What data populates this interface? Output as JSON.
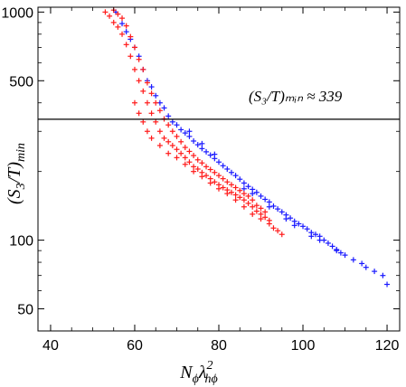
{
  "chart_data": {
    "type": "scatter",
    "xlabel_parts": {
      "base": "N",
      "sub1": "ϕ",
      "mid": "λ",
      "sup": "2",
      "sub2": "hϕ"
    },
    "ylabel_parts": {
      "open": "(S",
      "sub1": "3",
      "close": "/T)",
      "sub2": "min"
    },
    "xlim": [
      37,
      123
    ],
    "ylim": [
      40,
      1050
    ],
    "yscale": "log",
    "x_ticks": [
      40,
      60,
      80,
      100,
      120
    ],
    "x_tick_labels": [
      "40",
      "60",
      "80",
      "100",
      "120"
    ],
    "y_ticks": [
      50,
      100,
      500,
      1000
    ],
    "y_tick_labels": [
      "50",
      "100",
      "500",
      "1000"
    ],
    "annotation": {
      "text": "(S₃/T)ₘᵢₙ ≈ 339",
      "value": 339
    },
    "reference_line_y": 339,
    "grid": false,
    "series": [
      {
        "color": "#1a1aff",
        "marker": "+",
        "points": [
          [
            55.5,
            1000
          ],
          [
            57,
            890
          ],
          [
            58,
            820
          ],
          [
            59,
            760
          ],
          [
            60,
            700
          ],
          [
            61,
            640
          ],
          [
            62,
            560
          ],
          [
            63,
            500
          ],
          [
            64,
            470
          ],
          [
            65,
            430
          ],
          [
            66,
            400
          ],
          [
            67,
            380
          ],
          [
            68,
            350
          ],
          [
            69,
            330
          ],
          [
            70,
            320
          ],
          [
            71,
            305
          ],
          [
            72,
            295
          ],
          [
            73,
            285
          ],
          [
            74,
            272
          ],
          [
            75,
            262
          ],
          [
            76,
            252
          ],
          [
            77,
            244
          ],
          [
            78,
            236
          ],
          [
            79,
            228
          ],
          [
            80,
            220
          ],
          [
            81,
            212
          ],
          [
            82,
            205
          ],
          [
            83,
            198
          ],
          [
            84,
            192
          ],
          [
            85,
            185
          ],
          [
            86,
            178
          ],
          [
            87,
            172
          ],
          [
            88,
            167
          ],
          [
            89,
            162
          ],
          [
            90,
            156
          ],
          [
            91,
            151
          ],
          [
            92,
            147
          ],
          [
            93,
            141
          ],
          [
            94,
            137
          ],
          [
            95,
            133
          ],
          [
            96,
            129
          ],
          [
            97,
            125
          ],
          [
            98,
            121
          ],
          [
            99,
            118
          ],
          [
            100,
            115
          ],
          [
            101,
            112
          ],
          [
            102,
            108
          ],
          [
            103,
            106
          ],
          [
            104,
            104
          ],
          [
            105,
            100
          ],
          [
            106,
            97
          ],
          [
            107,
            94
          ],
          [
            108,
            91
          ],
          [
            109,
            88
          ],
          [
            110,
            86
          ],
          [
            112,
            82
          ],
          [
            114,
            79
          ],
          [
            115,
            76
          ],
          [
            117,
            73
          ],
          [
            119,
            70
          ],
          [
            120,
            64
          ],
          [
            86,
            168
          ],
          [
            88,
            160
          ],
          [
            92,
            140
          ],
          [
            96,
            124
          ],
          [
            98,
            116
          ],
          [
            102,
            104
          ],
          [
            104,
            100
          ],
          [
            108,
            90
          ],
          [
            73,
            300
          ],
          [
            76,
            265
          ],
          [
            79,
            238
          ]
        ]
      },
      {
        "color": "#ff1a1a",
        "marker": "+",
        "points": [
          [
            53,
            1000
          ],
          [
            54,
            960
          ],
          [
            55,
            900
          ],
          [
            55,
            1020
          ],
          [
            56,
            860
          ],
          [
            56,
            980
          ],
          [
            57,
            800
          ],
          [
            57,
            940
          ],
          [
            58,
            720
          ],
          [
            58,
            870
          ],
          [
            59,
            640
          ],
          [
            59,
            780
          ],
          [
            60,
            560
          ],
          [
            60,
            700
          ],
          [
            61,
            500
          ],
          [
            61,
            620
          ],
          [
            62,
            450
          ],
          [
            62,
            560
          ],
          [
            63,
            400
          ],
          [
            63,
            490
          ],
          [
            64,
            360
          ],
          [
            64,
            440
          ],
          [
            65,
            330
          ],
          [
            65,
            400
          ],
          [
            66,
            300
          ],
          [
            66,
            370
          ],
          [
            67,
            280
          ],
          [
            67,
            340
          ],
          [
            68,
            270
          ],
          [
            68,
            320
          ],
          [
            69,
            260
          ],
          [
            69,
            300
          ],
          [
            70,
            250
          ],
          [
            70,
            285
          ],
          [
            71,
            240
          ],
          [
            71,
            270
          ],
          [
            72,
            230
          ],
          [
            72,
            255
          ],
          [
            73,
            220
          ],
          [
            73,
            245
          ],
          [
            74,
            210
          ],
          [
            74,
            235
          ],
          [
            75,
            205
          ],
          [
            75,
            225
          ],
          [
            76,
            198
          ],
          [
            76,
            218
          ],
          [
            77,
            192
          ],
          [
            77,
            210
          ],
          [
            78,
            186
          ],
          [
            78,
            204
          ],
          [
            79,
            180
          ],
          [
            79,
            198
          ],
          [
            80,
            175
          ],
          [
            80,
            192
          ],
          [
            81,
            170
          ],
          [
            81,
            186
          ],
          [
            82,
            166
          ],
          [
            82,
            180
          ],
          [
            83,
            162
          ],
          [
            83,
            175
          ],
          [
            84,
            158
          ],
          [
            84,
            170
          ],
          [
            85,
            154
          ],
          [
            85,
            165
          ],
          [
            86,
            150
          ],
          [
            86,
            160
          ],
          [
            87,
            145
          ],
          [
            87,
            156
          ],
          [
            88,
            140
          ],
          [
            88,
            150
          ],
          [
            89,
            134
          ],
          [
            89,
            142
          ],
          [
            90,
            130
          ],
          [
            90,
            138
          ],
          [
            91,
            126
          ],
          [
            91,
            133
          ],
          [
            92,
            122
          ],
          [
            62,
            330
          ],
          [
            63,
            300
          ],
          [
            64,
            280
          ],
          [
            60,
            400
          ],
          [
            61,
            360
          ],
          [
            66,
            260
          ],
          [
            68,
            240
          ],
          [
            70,
            230
          ],
          [
            72,
            215
          ],
          [
            74,
            200
          ],
          [
            76,
            190
          ],
          [
            78,
            178
          ],
          [
            80,
            168
          ],
          [
            82,
            160
          ],
          [
            84,
            150
          ],
          [
            86,
            140
          ],
          [
            88,
            130
          ],
          [
            90,
            124
          ],
          [
            92,
            118
          ],
          [
            93,
            113
          ],
          [
            94,
            110
          ],
          [
            95,
            106
          ]
        ]
      }
    ]
  }
}
